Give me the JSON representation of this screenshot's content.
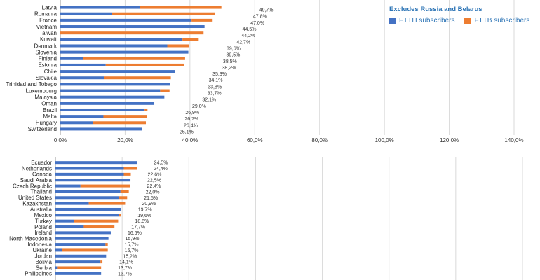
{
  "legend": {
    "title": "Excludes Russia and Belarus",
    "ftth_label": "FTTH subscribers",
    "fttb_label": "FTTB subscribers",
    "ftth_color": "#4472c4",
    "fttb_color": "#ed7d31"
  },
  "chart_data": [
    {
      "type": "bar",
      "orientation": "horizontal",
      "stacked": true,
      "xlim": [
        0,
        140
      ],
      "x_ticks": [
        "0,0%",
        "20,0%",
        "40,0%",
        "60,0%",
        "80,0%",
        "100,0%",
        "120,0%",
        "140,0%"
      ],
      "categories": [
        "Latvia",
        "Romania",
        "France",
        "Vietnam",
        "Taiwan",
        "Kuwait",
        "Denmark",
        "Slovenia",
        "Finland",
        "Estonia",
        "Chile",
        "Slovakia",
        "Trinidad and Tobago",
        "Luxembourg",
        "Malaysia",
        "Oman",
        "Brazil",
        "Malta",
        "Hungary",
        "Switzerland"
      ],
      "totals_labels": [
        "49,7%",
        "47,8%",
        "47,0%",
        "44,5%",
        "44,2%",
        "42,7%",
        "39,6%",
        "39,5%",
        "38,5%",
        "38,2%",
        "35,3%",
        "34,1%",
        "33,8%",
        "33,7%",
        "32,1%",
        "29,0%",
        "26,9%",
        "26,7%",
        "26,4%",
        "25,1%"
      ],
      "series": [
        {
          "name": "FTTH subscribers",
          "values": [
            24.5,
            15.8,
            40.5,
            44.5,
            0,
            37.7,
            33.0,
            39.5,
            7.0,
            14.0,
            35.3,
            13.5,
            33.8,
            30.8,
            32.1,
            29.0,
            26.0,
            13.3,
            10.0,
            25.1
          ]
        },
        {
          "name": "FTTB subscribers",
          "values": [
            25.2,
            32.0,
            6.5,
            0,
            44.2,
            5.0,
            6.6,
            0,
            31.5,
            24.2,
            0,
            20.6,
            0,
            2.9,
            0,
            0,
            0.9,
            13.4,
            16.4,
            0
          ]
        }
      ]
    },
    {
      "type": "bar",
      "orientation": "horizontal",
      "stacked": true,
      "xlim": [
        0,
        140
      ],
      "x_ticks": [],
      "categories": [
        "Ecuador",
        "Netherlands",
        "Canada",
        "Saudi Arabia",
        "Czech Republic",
        "Thailand",
        "United States",
        "Kazakhstan",
        "Australia",
        "Mexico",
        "Turkey",
        "Poland",
        "Ireland",
        "North Macedonia",
        "Indonesia",
        "Ukraine",
        "Jordan",
        "Bolivia",
        "Serbia",
        "Philippines"
      ],
      "totals_labels": [
        "24,5%",
        "24,4%",
        "22,6%",
        "22,5%",
        "22,4%",
        "22,0%",
        "21,5%",
        "20,9%",
        "19,7%",
        "19,6%",
        "18,8%",
        "17,7%",
        "16,6%",
        "15,9%",
        "15,7%",
        "15,7%",
        "15,2%",
        "14,1%",
        "13,7%",
        "13,7%"
      ],
      "series": [
        {
          "name": "FTTH subscribers",
          "values": [
            24.5,
            20.5,
            20.5,
            22.5,
            7.5,
            19.5,
            19.0,
            10.0,
            19.7,
            19.0,
            5.5,
            8.5,
            16.6,
            15.9,
            15.0,
            2.0,
            15.2,
            13.5,
            0.5,
            13.7
          ]
        },
        {
          "name": "FTTB subscribers",
          "values": [
            0,
            3.9,
            2.1,
            0,
            14.9,
            2.5,
            2.5,
            10.9,
            0,
            0.6,
            13.3,
            9.2,
            0,
            0,
            0.7,
            13.7,
            0,
            0.6,
            13.2,
            0
          ]
        }
      ]
    }
  ]
}
